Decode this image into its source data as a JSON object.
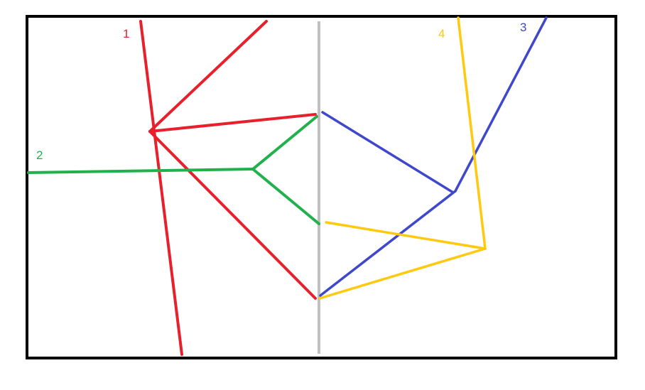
{
  "diagram": {
    "frame_color": "#000000",
    "divider_color": "#c0c0c0",
    "lines": [
      {
        "label": "1",
        "color": "#e8202c"
      },
      {
        "label": "2",
        "color": "#21b14c"
      },
      {
        "label": "3",
        "color": "#3f48cc"
      },
      {
        "label": "4",
        "color": "#ffc90e"
      }
    ]
  }
}
